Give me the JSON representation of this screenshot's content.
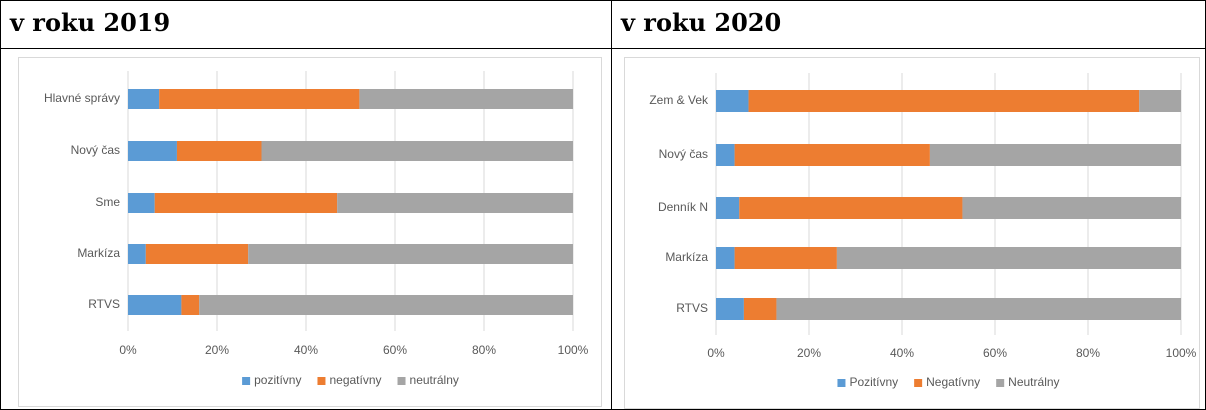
{
  "chart_data": [
    {
      "type": "stacked-bar-horizontal",
      "title": "v roku 2019",
      "categories": [
        "Hlavné správy",
        "Nový čas",
        "Sme",
        "Markíza",
        "RTVS"
      ],
      "series": [
        {
          "name": "pozitívny",
          "color": "#5b9bd5",
          "values": [
            7,
            11,
            6,
            4,
            12
          ]
        },
        {
          "name": "negatívny",
          "color": "#ed7d31",
          "values": [
            45,
            19,
            41,
            23,
            4
          ]
        },
        {
          "name": "neutrálny",
          "color": "#a5a5a5",
          "values": [
            48,
            70,
            53,
            73,
            84
          ]
        }
      ],
      "xlim": [
        0,
        100
      ],
      "xticks": [
        {
          "value": 0,
          "label": "0%"
        },
        {
          "value": 20,
          "label": "20%"
        },
        {
          "value": 40,
          "label": "40%"
        },
        {
          "value": 60,
          "label": "60%"
        },
        {
          "value": 80,
          "label": "80%"
        },
        {
          "value": 100,
          "label": "100%"
        }
      ],
      "grid": true,
      "legend": "bottom"
    },
    {
      "type": "stacked-bar-horizontal",
      "title": "v roku 2020",
      "categories": [
        "Zem & Vek",
        "Nový čas",
        "Denník N",
        "Markíza",
        "RTVS"
      ],
      "series": [
        {
          "name": "Pozitívny",
          "color": "#5b9bd5",
          "values": [
            7,
            4,
            5,
            4,
            6
          ]
        },
        {
          "name": "Negatívny",
          "color": "#ed7d31",
          "values": [
            84,
            42,
            48,
            22,
            7
          ]
        },
        {
          "name": "Neutrálny",
          "color": "#a5a5a5",
          "values": [
            9,
            54,
            47,
            74,
            87
          ]
        }
      ],
      "xlim": [
        0,
        100
      ],
      "xticks": [
        {
          "value": 0,
          "label": "0%"
        },
        {
          "value": 20,
          "label": "20%"
        },
        {
          "value": 40,
          "label": "40%"
        },
        {
          "value": 60,
          "label": "60%"
        },
        {
          "value": 80,
          "label": "80%"
        },
        {
          "value": 100,
          "label": "100%"
        }
      ],
      "grid": true,
      "legend": "bottom"
    }
  ]
}
